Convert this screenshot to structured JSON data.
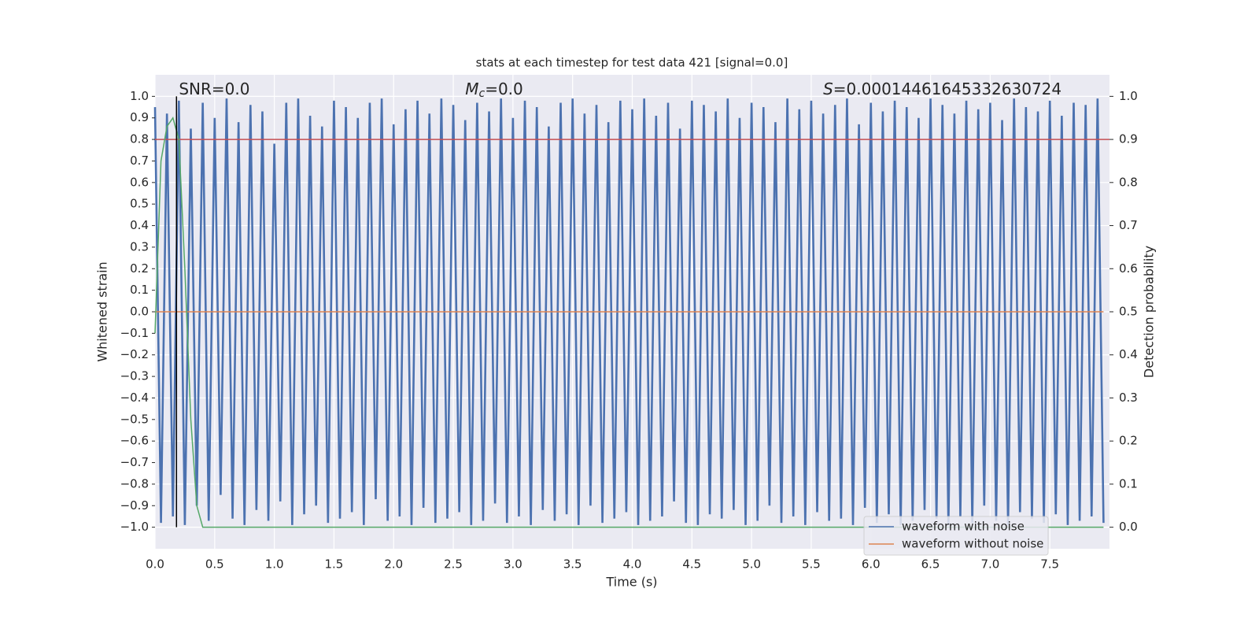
{
  "chart_data": {
    "type": "line",
    "title": "stats at each timestep for test data 421 [signal=0.0]",
    "xlabel": "Time (s)",
    "ylabel": "Whitened strain",
    "y2label": "Detection probability",
    "annotations": [
      {
        "italic": "",
        "subscript": "",
        "text": "SNR=0.0",
        "x": 0.2
      },
      {
        "italic": "M",
        "subscript": "c",
        "text": "=0.0",
        "x": 2.6
      },
      {
        "italic": "S",
        "subscript": "",
        "text": "=0.00014461645332630724",
        "x": 5.6
      }
    ],
    "xlim": [
      0,
      8
    ],
    "xticks": [
      {
        "value": 0,
        "label": "0.0"
      },
      0.5,
      {
        "value": 1,
        "label": "1.0"
      },
      1.5,
      {
        "value": 2,
        "label": "2.0"
      },
      2.5,
      {
        "value": 3,
        "label": "3.0"
      },
      3.5,
      {
        "value": 4,
        "label": "4.0"
      },
      4.5,
      {
        "value": 5,
        "label": "5.0"
      },
      5.5,
      {
        "value": 6,
        "label": "6.0"
      },
      6.5,
      {
        "value": 7,
        "label": "7.0"
      },
      7.5
    ],
    "ylim": [
      -1.1,
      1.1
    ],
    "yticks": [
      {
        "value": -1,
        "label": "−1.0"
      },
      {
        "value": -0.9,
        "label": "−0.9"
      },
      {
        "value": -0.8,
        "label": "−0.8"
      },
      {
        "value": -0.7,
        "label": "−0.7"
      },
      {
        "value": -0.6,
        "label": "−0.6"
      },
      {
        "value": -0.5,
        "label": "−0.5"
      },
      {
        "value": -0.4,
        "label": "−0.4"
      },
      {
        "value": -0.3,
        "label": "−0.3"
      },
      {
        "value": -0.2,
        "label": "−0.2"
      },
      {
        "value": -0.1,
        "label": "−0.1"
      },
      {
        "value": 0,
        "label": "0.0"
      },
      0.1,
      0.2,
      0.3,
      0.4,
      0.5,
      0.6,
      0.7,
      0.8,
      0.9,
      {
        "value": 1,
        "label": "1.0"
      }
    ],
    "y2lim": [
      -0.05,
      1.05
    ],
    "y2ticks": [
      {
        "value": 0,
        "label": "0.0"
      },
      0.1,
      0.2,
      0.3,
      0.4,
      0.5,
      0.6,
      0.7,
      0.8,
      0.9,
      {
        "value": 1,
        "label": "1.0"
      }
    ],
    "grid": true,
    "legend": "lower right",
    "series": [
      {
        "name": "waveform with noise",
        "color": "#4c72b0",
        "x": [
          0,
          0.05,
          0.1,
          0.15,
          0.2,
          0.25,
          0.3,
          0.35,
          0.4,
          0.45,
          0.5,
          0.55,
          0.6,
          0.65,
          0.7,
          0.75,
          0.8,
          0.85,
          0.9,
          0.95,
          1,
          1.05,
          1.1,
          1.15,
          1.2,
          1.25,
          1.3,
          1.35,
          1.4,
          1.45,
          1.5,
          1.55,
          1.6,
          1.65,
          1.7,
          1.75,
          1.8,
          1.85,
          1.9,
          1.95,
          2,
          2.05,
          2.1,
          2.15,
          2.2,
          2.25,
          2.3,
          2.35,
          2.4,
          2.45,
          2.5,
          2.55,
          2.6,
          2.65,
          2.7,
          2.75,
          2.8,
          2.85,
          2.9,
          2.95,
          3,
          3.05,
          3.1,
          3.15,
          3.2,
          3.25,
          3.3,
          3.35,
          3.4,
          3.45,
          3.5,
          3.55,
          3.6,
          3.65,
          3.7,
          3.75,
          3.8,
          3.85,
          3.9,
          3.95,
          4,
          4.05,
          4.1,
          4.15,
          4.2,
          4.25,
          4.3,
          4.35,
          4.4,
          4.45,
          4.5,
          4.55,
          4.6,
          4.65,
          4.7,
          4.75,
          4.8,
          4.85,
          4.9,
          4.95,
          5,
          5.05,
          5.1,
          5.15,
          5.2,
          5.25,
          5.3,
          5.35,
          5.4,
          5.45,
          5.5,
          5.55,
          5.6,
          5.65,
          5.7,
          5.75,
          5.8,
          5.85,
          5.9,
          5.95,
          6,
          6.05,
          6.1,
          6.15,
          6.2,
          6.25,
          6.3,
          6.35,
          6.4,
          6.45,
          6.5,
          6.55,
          6.6,
          6.65,
          6.7,
          6.75,
          6.8,
          6.85,
          6.9,
          6.95,
          7,
          7.05,
          7.1,
          7.15,
          7.2,
          7.25,
          7.3,
          7.35,
          7.4,
          7.45,
          7.5,
          7.55,
          7.6,
          7.65,
          7.7,
          7.75,
          7.8,
          7.85,
          7.9,
          7.95
        ],
        "values": [
          0.95,
          -0.98,
          0.92,
          -0.95,
          0.98,
          -0.99,
          0.85,
          -0.9,
          0.97,
          -0.97,
          0.9,
          -0.85,
          0.99,
          -0.96,
          0.88,
          -0.99,
          0.96,
          -0.92,
          0.93,
          -0.97,
          0.78,
          -0.88,
          0.97,
          -0.99,
          0.99,
          -0.94,
          0.91,
          -0.9,
          0.86,
          -0.98,
          0.98,
          -0.96,
          0.95,
          -0.93,
          0.9,
          -0.99,
          0.97,
          -0.87,
          0.99,
          -0.97,
          0.87,
          -0.95,
          0.94,
          -0.99,
          0.98,
          -0.91,
          0.92,
          -0.98,
          0.99,
          -0.96,
          0.96,
          -0.93,
          0.89,
          -0.99,
          0.97,
          -0.97,
          0.93,
          -0.89,
          0.99,
          -0.98,
          0.9,
          -0.95,
          0.98,
          -0.99,
          0.95,
          -0.92,
          0.86,
          -0.97,
          0.97,
          -0.94,
          0.99,
          -0.99,
          0.92,
          -0.9,
          0.96,
          -0.98,
          0.88,
          -0.96,
          0.98,
          -0.93,
          0.94,
          -0.99,
          0.99,
          -0.97,
          0.91,
          -0.95,
          0.97,
          -0.88,
          0.85,
          -0.98,
          0.98,
          -0.99,
          0.96,
          -0.94,
          0.93,
          -0.96,
          0.99,
          -0.92,
          0.9,
          -0.99,
          0.97,
          -0.97,
          0.95,
          -0.9,
          0.88,
          -0.98,
          0.99,
          -0.95,
          0.94,
          -0.99,
          0.98,
          -0.93,
          0.92,
          -0.97,
          0.96,
          -0.96,
          0.99,
          -0.99,
          0.87,
          -0.91,
          0.97,
          -0.98,
          0.93,
          -0.94,
          0.98,
          -0.99,
          0.95,
          -0.97,
          0.9,
          -0.92,
          0.99,
          -0.96,
          0.96,
          -0.99,
          0.92,
          -0.95,
          0.98,
          -0.98,
          0.94,
          -0.9,
          0.97,
          -0.97,
          0.89,
          -0.99,
          0.99,
          -0.93,
          0.95,
          -0.96,
          0.93,
          -0.98,
          0.98,
          -0.94,
          0.91,
          -0.99,
          0.97,
          -0.97,
          0.96,
          -0.95,
          0.99,
          -0.98
        ]
      },
      {
        "name": "waveform without noise",
        "color": "#dd8452",
        "x": [
          0,
          7.95
        ],
        "values": [
          0,
          0
        ]
      }
    ],
    "probability": {
      "color": "#55a868",
      "axis": "y2",
      "x": [
        0,
        0.05,
        0.1,
        0.15,
        0.2,
        0.25,
        0.3,
        0.35,
        0.4,
        7.95
      ],
      "values": [
        0.45,
        0.85,
        0.93,
        0.95,
        0.9,
        0.6,
        0.25,
        0.05,
        0,
        0
      ]
    },
    "threshold": {
      "value": 0.9,
      "color": "#c44e52",
      "axis": "y2"
    },
    "marker": {
      "x": 0.18,
      "color": "#000000",
      "ymin": -1,
      "ymax": 1
    }
  }
}
